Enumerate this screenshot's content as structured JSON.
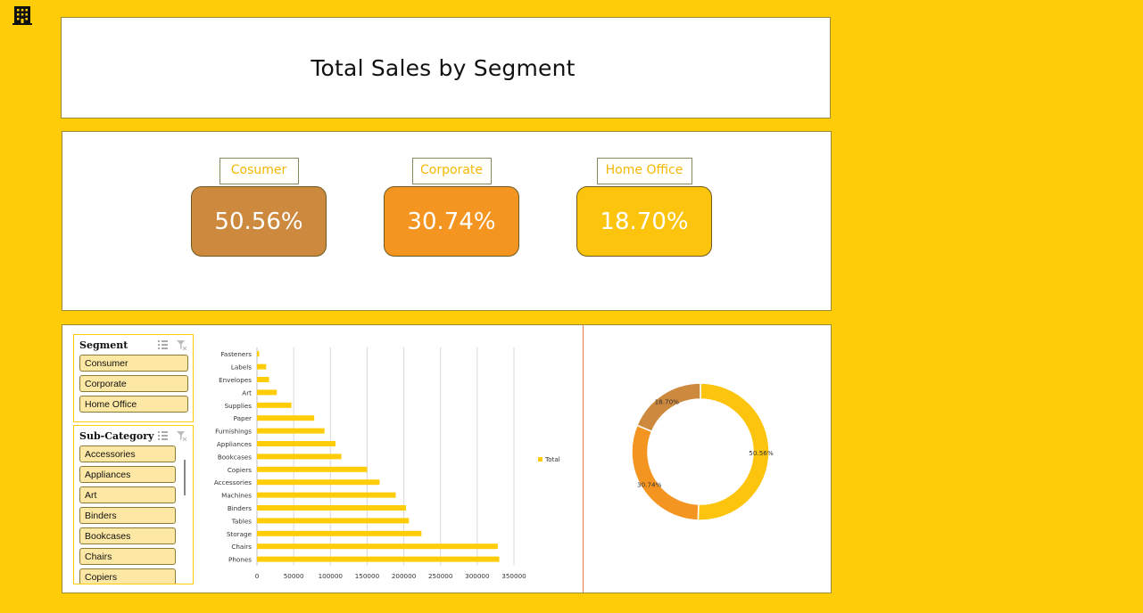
{
  "title": "Total Sales by Segment",
  "kpis": [
    {
      "label": "Cosumer",
      "value": "50.56%",
      "color": "#CD8A3F"
    },
    {
      "label": "Corporate",
      "value": "30.74%",
      "color": "#F49522"
    },
    {
      "label": "Home Office",
      "value": "18.70%",
      "color": "#FCC40C"
    }
  ],
  "segment_slicer": {
    "title": "Segment",
    "items": [
      "Consumer",
      "Corporate",
      "Home Office"
    ]
  },
  "subcategory_slicer": {
    "title": "Sub-Category",
    "items": [
      "Accessories",
      "Appliances",
      "Art",
      "Binders",
      "Bookcases",
      "Chairs",
      "Copiers"
    ]
  },
  "colors": {
    "background": "#FFCC0A",
    "bar": "#FFCC0A",
    "label_text": "#F5B800"
  },
  "chart_data": [
    {
      "type": "bar",
      "orientation": "horizontal",
      "categories": [
        "Fasteners",
        "Labels",
        "Envelopes",
        "Art",
        "Supplies",
        "Paper",
        "Furnishings",
        "Appliances",
        "Bookcases",
        "Copiers",
        "Accessories",
        "Machines",
        "Binders",
        "Tables",
        "Storage",
        "Chairs",
        "Phones"
      ],
      "series": [
        {
          "name": "Total",
          "values": [
            3000,
            12500,
            16500,
            27000,
            47000,
            78000,
            92000,
            107000,
            115000,
            150000,
            167000,
            189000,
            203000,
            207000,
            224000,
            328000,
            330000
          ]
        }
      ],
      "xlim": [
        0,
        350000
      ],
      "xticks": [
        0,
        50000,
        100000,
        150000,
        200000,
        250000,
        300000,
        350000
      ],
      "grid": true,
      "legend": "right"
    },
    {
      "type": "pie",
      "style": "donut",
      "slices": [
        {
          "label": "50.56%",
          "value": 50.56,
          "color": "#FCC40C"
        },
        {
          "label": "30.74%",
          "value": 30.74,
          "color": "#F49522"
        },
        {
          "label": "18.70%",
          "value": 18.7,
          "color": "#CD8A3F"
        }
      ]
    }
  ]
}
